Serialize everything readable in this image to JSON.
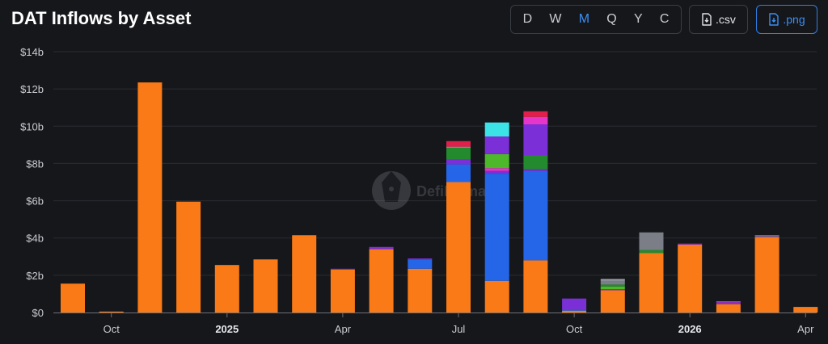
{
  "header": {
    "title": "DAT Inflows by Asset",
    "periods": [
      "D",
      "W",
      "M",
      "Q",
      "Y",
      "C"
    ],
    "active_period": "M",
    "csv_label": ".csv",
    "png_label": ".png"
  },
  "watermark": {
    "text": "DefiLlama"
  },
  "colors": {
    "BTC": "#f97a16",
    "ETH": "#2566e9",
    "SOL": "#7b2fd6",
    "HYPE": "#3ce3e6",
    "BNB": "#4cb82a",
    "SUI": "#238a2e",
    "TRX": "#e0204a",
    "Other1": "#e636c9",
    "Other2": "#7b7e86",
    "Other3": "#9aa0a8"
  },
  "chart_data": {
    "type": "bar",
    "stacked": true,
    "ylim": [
      0,
      14
    ],
    "y_ticks": [
      {
        "value": 0,
        "label": "$0"
      },
      {
        "value": 2,
        "label": "$2b"
      },
      {
        "value": 4,
        "label": "$4b"
      },
      {
        "value": 6,
        "label": "$6b"
      },
      {
        "value": 8,
        "label": "$8b"
      },
      {
        "value": 10,
        "label": "$10b"
      },
      {
        "value": 12,
        "label": "$12b"
      },
      {
        "value": 14,
        "label": "$14b"
      }
    ],
    "x_ticks": [
      {
        "index": 1.3,
        "label": "Oct",
        "bold": false
      },
      {
        "index": 4.3,
        "label": "2025",
        "bold": true
      },
      {
        "index": 7.3,
        "label": "Apr",
        "bold": false
      },
      {
        "index": 10.3,
        "label": "Jul",
        "bold": false
      },
      {
        "index": 13.3,
        "label": "Oct",
        "bold": false
      },
      {
        "index": 16.3,
        "label": "2026",
        "bold": true
      },
      {
        "index": 19.3,
        "label": "Apr",
        "bold": false
      }
    ],
    "categories": [
      "Sep 2024",
      "Oct 2024",
      "Nov 2024",
      "Dec 2024",
      "Jan 2025",
      "Feb 2025",
      "Mar 2025",
      "Apr 2025",
      "May 2025",
      "Jun 2025",
      "Jul 2025",
      "Aug 2025",
      "Sep 2025",
      "Oct 2025",
      "Nov 2025",
      "Dec 2025",
      "Jan 2026",
      "Feb 2026",
      "Mar 2026",
      "Apr 2026"
    ],
    "series": [
      {
        "key": "BTC",
        "values": [
          1.55,
          0.05,
          12.35,
          5.95,
          2.55,
          2.85,
          4.15,
          2.3,
          3.4,
          2.35,
          7.0,
          1.7,
          2.8,
          0.1,
          1.2,
          3.2,
          3.65,
          0.45,
          4.05,
          0.3
        ]
      },
      {
        "key": "ETH",
        "values": [
          0,
          0,
          0,
          0,
          0,
          0,
          0,
          0,
          0,
          0.5,
          0.95,
          5.75,
          4.8,
          0.05,
          0,
          0,
          0,
          0,
          0,
          0
        ]
      },
      {
        "key": "SOL",
        "values": [
          0,
          0,
          0,
          0,
          0,
          0,
          0,
          0.05,
          0.12,
          0.05,
          0.25,
          0.15,
          0.1,
          0.6,
          0.05,
          0,
          0.05,
          0.1,
          0.05,
          0
        ]
      },
      {
        "key": "Other1",
        "values": [
          0,
          0,
          0,
          0,
          0,
          0,
          0,
          0,
          0,
          0,
          0,
          0.15,
          0,
          0,
          0,
          0,
          0,
          0.05,
          0,
          0
        ]
      },
      {
        "key": "BNB",
        "values": [
          0,
          0,
          0,
          0,
          0,
          0,
          0,
          0,
          0,
          0,
          0,
          0.75,
          0,
          0,
          0.15,
          0,
          0,
          0,
          0.05,
          0
        ]
      },
      {
        "key": "SUI",
        "values": [
          0,
          0,
          0,
          0,
          0,
          0,
          0,
          0,
          0,
          0,
          0.65,
          0,
          0.75,
          0,
          0.1,
          0.15,
          0,
          0,
          0,
          0
        ]
      },
      {
        "key": "SOL",
        "values": [
          0,
          0,
          0,
          0,
          0,
          0,
          0,
          0,
          0,
          0,
          0,
          0.95,
          1.65,
          0,
          0,
          0,
          0,
          0,
          0,
          0
        ]
      },
      {
        "key": "Other2",
        "values": [
          0,
          0,
          0,
          0,
          0,
          0,
          0,
          0,
          0,
          0,
          0,
          0,
          0,
          0,
          0.2,
          0.95,
          0,
          0,
          0,
          0
        ]
      },
      {
        "key": "Other3",
        "values": [
          0,
          0,
          0,
          0,
          0,
          0,
          0,
          0,
          0,
          0,
          0.05,
          0,
          0,
          0,
          0.1,
          0,
          0,
          0,
          0,
          0
        ]
      },
      {
        "key": "Other1",
        "values": [
          0,
          0,
          0,
          0,
          0,
          0,
          0,
          0,
          0,
          0,
          0,
          0,
          0.4,
          0,
          0,
          0,
          0,
          0,
          0,
          0
        ]
      },
      {
        "key": "TRX",
        "values": [
          0,
          0,
          0,
          0,
          0,
          0,
          0,
          0,
          0,
          0,
          0.3,
          0,
          0.3,
          0,
          0,
          0,
          0,
          0,
          0,
          0
        ]
      },
      {
        "key": "HYPE",
        "values": [
          0,
          0,
          0,
          0,
          0,
          0,
          0,
          0,
          0,
          0,
          0,
          0.75,
          0,
          0,
          0,
          0,
          0,
          0,
          0,
          0
        ]
      }
    ]
  }
}
